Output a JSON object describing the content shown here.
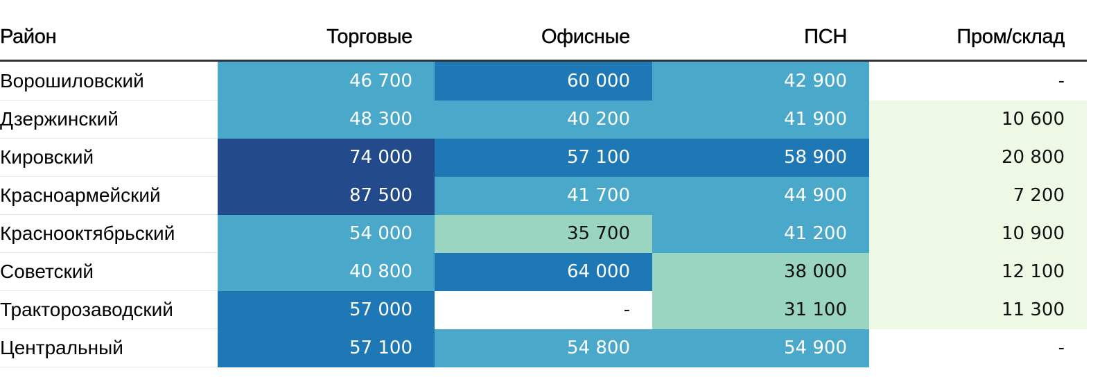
{
  "chart_data": {
    "type": "table",
    "columns": [
      "Район",
      "Торговые",
      "Офисные",
      "ПСН",
      "Пром/склад"
    ],
    "rows": [
      {
        "district": "Ворошиловский",
        "values": [
          "46 700",
          "60 000",
          "42 900",
          "-"
        ]
      },
      {
        "district": "Дзержинский",
        "values": [
          "48 300",
          "40 200",
          "41 900",
          "10 600"
        ]
      },
      {
        "district": "Кировский",
        "values": [
          "74 000",
          "57 100",
          "58 900",
          "20 800"
        ]
      },
      {
        "district": "Красноармейский",
        "values": [
          "87 500",
          "41 700",
          "44 900",
          "7 200"
        ]
      },
      {
        "district": "Краснооктябрьский",
        "values": [
          "54 000",
          "35 700",
          "41 200",
          "10 900"
        ]
      },
      {
        "district": "Советский",
        "values": [
          "40 800",
          "64 000",
          "38 000",
          "12 100"
        ]
      },
      {
        "district": "Тракторозаводский",
        "values": [
          "57 000",
          "-",
          "31 100",
          "11 300"
        ]
      },
      {
        "district": "Центральный",
        "values": [
          "57 100",
          "54 800",
          "54 900",
          "-"
        ]
      }
    ],
    "color_scale": [
      {
        "min": 0,
        "max": 30000,
        "color": "#edf8e5",
        "text": "#111111"
      },
      {
        "min": 30000,
        "max": 40000,
        "color": "#99d5c0",
        "text": "#111111"
      },
      {
        "min": 40000,
        "max": 55000,
        "color": "#4aa9cb",
        "text": "#ffffff"
      },
      {
        "min": 55000,
        "max": 70000,
        "color": "#1e78b5",
        "text": "#ffffff"
      },
      {
        "min": 70000,
        "max": 100000,
        "color": "#234a8b",
        "text": "#ffffff"
      }
    ],
    "missing_color": "#ffffff"
  }
}
